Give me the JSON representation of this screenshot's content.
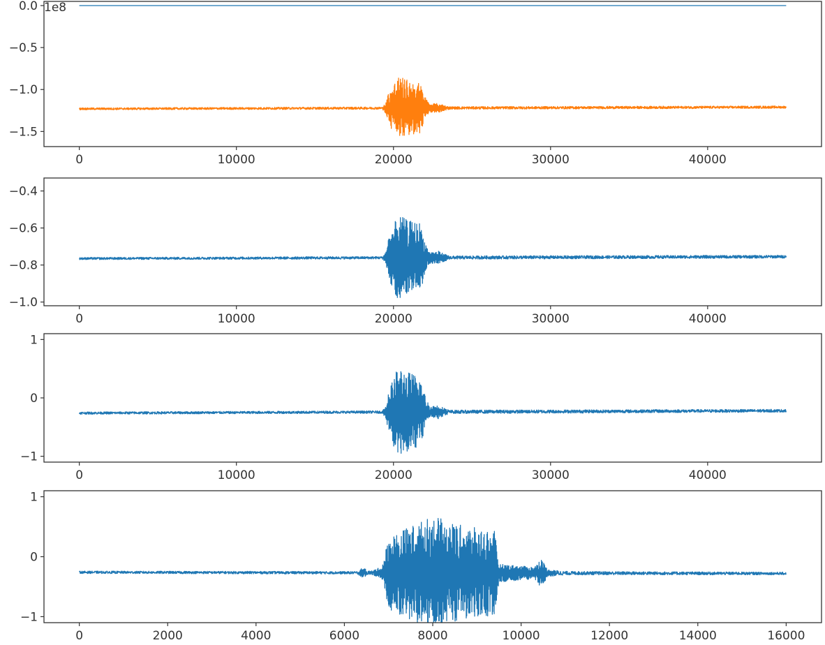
{
  "chart_data": [
    {
      "type": "line",
      "title": "",
      "xlabel": "",
      "ylabel": "",
      "grid": false,
      "offset_text": "1e8",
      "xlim": [
        -2250,
        47250
      ],
      "ylim": [
        -1.68,
        0.05
      ],
      "x_ticks": [
        0,
        10000,
        20000,
        30000,
        40000
      ],
      "x_tick_labels": [
        "0",
        "10000",
        "20000",
        "30000",
        "40000"
      ],
      "y_ticks": [
        0.0,
        -0.5,
        -1.0,
        -1.5
      ],
      "y_tick_labels": [
        "0.0",
        "−0.5",
        "−1.0",
        "−1.5"
      ],
      "series": [
        {
          "color": "#1f77b4",
          "baseline": 0.0,
          "noise": 0.003,
          "envelope": [
            [
              0,
              0
            ],
            [
              45000,
              0
            ]
          ],
          "range": [
            0,
            45000
          ]
        },
        {
          "color": "#ff7f0e",
          "baseline": -1.23,
          "baseline_end": -1.21,
          "noise": 0.012,
          "envelope": [
            [
              0,
              0.012
            ],
            [
              19300,
              0.014
            ],
            [
              19500,
              0.06
            ],
            [
              19700,
              0.2
            ],
            [
              20300,
              0.38
            ],
            [
              21000,
              0.33
            ],
            [
              21700,
              0.3
            ],
            [
              22000,
              0.14
            ],
            [
              22300,
              0.05
            ],
            [
              22900,
              0.055
            ],
            [
              23100,
              0.04
            ],
            [
              23600,
              0.016
            ],
            [
              45000,
              0.014
            ]
          ],
          "range": [
            0,
            45000
          ]
        }
      ]
    },
    {
      "type": "line",
      "title": "",
      "xlabel": "",
      "ylabel": "",
      "grid": false,
      "xlim": [
        -2250,
        47250
      ],
      "ylim": [
        -1.02,
        -0.33
      ],
      "x_ticks": [
        0,
        10000,
        20000,
        30000,
        40000
      ],
      "x_tick_labels": [
        "0",
        "10000",
        "20000",
        "30000",
        "40000"
      ],
      "y_ticks": [
        -0.4,
        -0.6,
        -0.8,
        -1.0
      ],
      "y_tick_labels": [
        "−0.4",
        "−0.6",
        "−0.8",
        "−1.0"
      ],
      "series": [
        {
          "color": "#1f77b4",
          "baseline": -0.765,
          "baseline_end": -0.755,
          "noise": 0.006,
          "envelope": [
            [
              0,
              0.006
            ],
            [
              19300,
              0.007
            ],
            [
              19500,
              0.03
            ],
            [
              19700,
              0.12
            ],
            [
              20300,
              0.23
            ],
            [
              21000,
              0.2
            ],
            [
              21700,
              0.19
            ],
            [
              22000,
              0.09
            ],
            [
              22300,
              0.03
            ],
            [
              22900,
              0.035
            ],
            [
              23100,
              0.025
            ],
            [
              23600,
              0.009
            ],
            [
              45000,
              0.008
            ]
          ],
          "range": [
            0,
            45000
          ]
        }
      ]
    },
    {
      "type": "line",
      "title": "",
      "xlabel": "",
      "ylabel": "",
      "grid": false,
      "xlim": [
        -2250,
        47250
      ],
      "ylim": [
        -1.1,
        1.1
      ],
      "x_ticks": [
        0,
        10000,
        20000,
        30000,
        40000
      ],
      "x_tick_labels": [
        "0",
        "10000",
        "20000",
        "30000",
        "40000"
      ],
      "y_ticks": [
        1,
        0,
        -1
      ],
      "y_tick_labels": [
        "1",
        "0",
        "−1"
      ],
      "series": [
        {
          "color": "#1f77b4",
          "baseline": -0.26,
          "baseline_end": -0.22,
          "noise": 0.02,
          "envelope": [
            [
              0,
              0.02
            ],
            [
              19300,
              0.022
            ],
            [
              19500,
              0.1
            ],
            [
              19700,
              0.38
            ],
            [
              20300,
              0.78
            ],
            [
              21000,
              0.68
            ],
            [
              21700,
              0.62
            ],
            [
              22000,
              0.3
            ],
            [
              22300,
              0.1
            ],
            [
              22900,
              0.12
            ],
            [
              23100,
              0.08
            ],
            [
              23600,
              0.03
            ],
            [
              45000,
              0.025
            ]
          ],
          "range": [
            0,
            45000
          ]
        }
      ]
    },
    {
      "type": "line",
      "title": "",
      "xlabel": "",
      "ylabel": "",
      "grid": false,
      "xlim": [
        -800,
        16800
      ],
      "ylim": [
        -1.1,
        1.1
      ],
      "x_ticks": [
        0,
        2000,
        4000,
        6000,
        8000,
        10000,
        12000,
        14000,
        16000
      ],
      "x_tick_labels": [
        "0",
        "2000",
        "4000",
        "6000",
        "8000",
        "10000",
        "12000",
        "14000",
        "16000"
      ],
      "y_ticks": [
        1,
        0,
        -1
      ],
      "y_tick_labels": [
        "1",
        "0",
        "−1"
      ],
      "series": [
        {
          "color": "#1f77b4",
          "baseline": -0.26,
          "baseline_end": -0.28,
          "noise": 0.02,
          "envelope": [
            [
              0,
              0.02
            ],
            [
              6300,
              0.022
            ],
            [
              6400,
              0.08
            ],
            [
              6600,
              0.03
            ],
            [
              6850,
              0.1
            ],
            [
              7000,
              0.6
            ],
            [
              7400,
              0.75
            ],
            [
              8000,
              0.95
            ],
            [
              8600,
              0.8
            ],
            [
              9400,
              0.7
            ],
            [
              9500,
              0.15
            ],
            [
              10300,
              0.1
            ],
            [
              10450,
              0.25
            ],
            [
              10600,
              0.06
            ],
            [
              11000,
              0.03
            ],
            [
              16000,
              0.022
            ]
          ],
          "range": [
            0,
            16000
          ]
        }
      ]
    }
  ]
}
